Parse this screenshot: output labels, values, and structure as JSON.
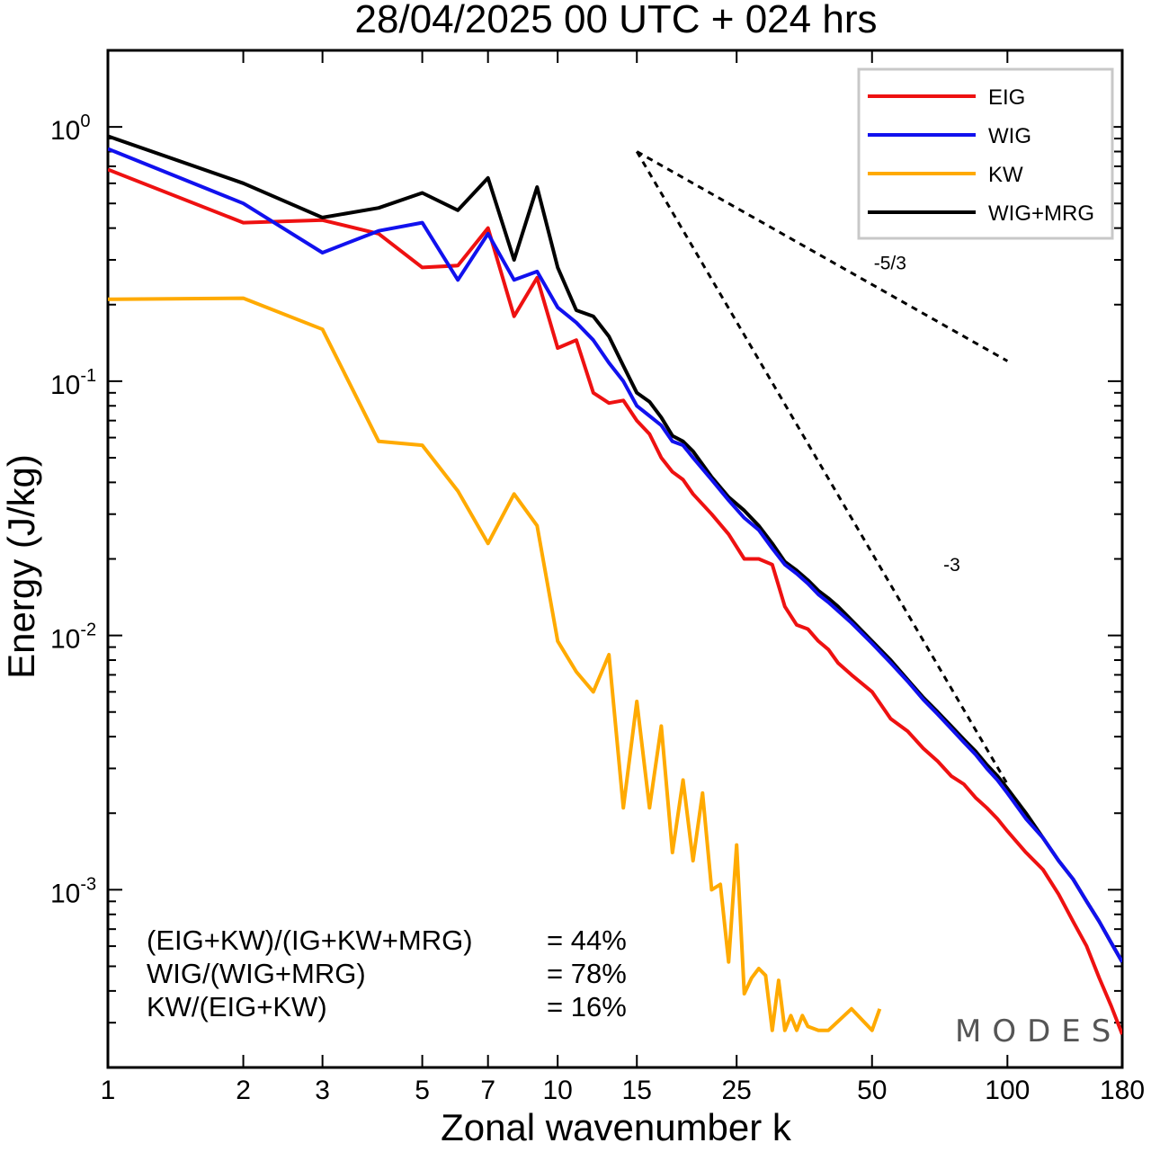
{
  "chart_data": {
    "type": "line",
    "title": "28/04/2025  00 UTC  + 024 hrs",
    "xlabel": "Zonal wavenumber k",
    "ylabel": "Energy (J/kg)",
    "xscale": "log",
    "yscale": "log",
    "xlim": [
      1,
      180
    ],
    "ylim": [
      0.0002,
      2.0
    ],
    "x_ticks": [
      1,
      2,
      3,
      5,
      7,
      10,
      15,
      25,
      50,
      100,
      180
    ],
    "y_tick_labels": [
      {
        "value": 1,
        "base": "10",
        "exp": "0"
      },
      {
        "value": 0.1,
        "base": "10",
        "exp": "-1"
      },
      {
        "value": 0.01,
        "base": "10",
        "exp": "-2"
      },
      {
        "value": 0.001,
        "base": "10",
        "exp": "-3"
      }
    ],
    "legend_position": "top-right",
    "series": [
      {
        "name": "EIG",
        "color": "#ee1111",
        "points": [
          [
            1,
            0.68
          ],
          [
            2,
            0.42
          ],
          [
            3,
            0.43
          ],
          [
            4,
            0.38
          ],
          [
            5,
            0.28
          ],
          [
            6,
            0.285
          ],
          [
            7,
            0.4
          ],
          [
            8,
            0.18
          ],
          [
            9,
            0.255
          ],
          [
            10,
            0.135
          ],
          [
            11,
            0.145
          ],
          [
            12,
            0.09
          ],
          [
            13,
            0.082
          ],
          [
            14,
            0.084
          ],
          [
            15,
            0.07
          ],
          [
            16,
            0.062
          ],
          [
            17,
            0.05
          ],
          [
            18,
            0.044
          ],
          [
            19,
            0.041
          ],
          [
            20,
            0.036
          ],
          [
            22,
            0.03
          ],
          [
            24,
            0.025
          ],
          [
            26,
            0.02
          ],
          [
            28,
            0.02
          ],
          [
            30,
            0.019
          ],
          [
            32,
            0.013
          ],
          [
            34,
            0.011
          ],
          [
            36,
            0.0106
          ],
          [
            38,
            0.0095
          ],
          [
            40,
            0.0088
          ],
          [
            42,
            0.0078
          ],
          [
            45,
            0.007
          ],
          [
            50,
            0.006
          ],
          [
            55,
            0.0047
          ],
          [
            60,
            0.0042
          ],
          [
            65,
            0.0036
          ],
          [
            70,
            0.0032
          ],
          [
            75,
            0.0028
          ],
          [
            80,
            0.0026
          ],
          [
            85,
            0.0023
          ],
          [
            90,
            0.0021
          ],
          [
            95,
            0.0019
          ],
          [
            100,
            0.0017
          ],
          [
            110,
            0.0014
          ],
          [
            120,
            0.0012
          ],
          [
            130,
            0.00096
          ],
          [
            140,
            0.00075
          ],
          [
            150,
            0.0006
          ],
          [
            160,
            0.00045
          ],
          [
            170,
            0.00035
          ],
          [
            180,
            0.00027
          ]
        ]
      },
      {
        "name": "WIG",
        "color": "#1111ee",
        "points": [
          [
            1,
            0.82
          ],
          [
            2,
            0.5
          ],
          [
            3,
            0.32
          ],
          [
            4,
            0.39
          ],
          [
            5,
            0.42
          ],
          [
            6,
            0.25
          ],
          [
            7,
            0.38
          ],
          [
            8,
            0.25
          ],
          [
            9,
            0.27
          ],
          [
            10,
            0.195
          ],
          [
            11,
            0.17
          ],
          [
            12,
            0.145
          ],
          [
            13,
            0.118
          ],
          [
            14,
            0.1
          ],
          [
            15,
            0.08
          ],
          [
            16,
            0.073
          ],
          [
            17,
            0.067
          ],
          [
            18,
            0.058
          ],
          [
            19,
            0.056
          ],
          [
            20,
            0.05
          ],
          [
            22,
            0.041
          ],
          [
            24,
            0.034
          ],
          [
            26,
            0.029
          ],
          [
            28,
            0.026
          ],
          [
            30,
            0.022
          ],
          [
            32,
            0.019
          ],
          [
            34,
            0.0175
          ],
          [
            36,
            0.016
          ],
          [
            38,
            0.0145
          ],
          [
            40,
            0.0135
          ],
          [
            42,
            0.0125
          ],
          [
            45,
            0.0112
          ],
          [
            50,
            0.0093
          ],
          [
            55,
            0.0078
          ],
          [
            60,
            0.0066
          ],
          [
            65,
            0.0056
          ],
          [
            70,
            0.0049
          ],
          [
            75,
            0.0043
          ],
          [
            80,
            0.0038
          ],
          [
            85,
            0.0034
          ],
          [
            90,
            0.003
          ],
          [
            95,
            0.0027
          ],
          [
            100,
            0.0024
          ],
          [
            110,
            0.0019
          ],
          [
            120,
            0.0016
          ],
          [
            130,
            0.0013
          ],
          [
            140,
            0.0011
          ],
          [
            150,
            0.0009
          ],
          [
            160,
            0.00075
          ],
          [
            170,
            0.00062
          ],
          [
            180,
            0.00052
          ]
        ]
      },
      {
        "name": "KW",
        "color": "#ffaa00",
        "points": [
          [
            1,
            0.21
          ],
          [
            2,
            0.212
          ],
          [
            3,
            0.16
          ],
          [
            4,
            0.058
          ],
          [
            5,
            0.056
          ],
          [
            6,
            0.037
          ],
          [
            7,
            0.023
          ],
          [
            8,
            0.036
          ],
          [
            9,
            0.027
          ],
          [
            10,
            0.0095
          ],
          [
            11,
            0.0072
          ],
          [
            12,
            0.006
          ],
          [
            13,
            0.0084
          ],
          [
            14,
            0.0021
          ],
          [
            15,
            0.0055
          ],
          [
            16,
            0.0021
          ],
          [
            17,
            0.0044
          ],
          [
            18,
            0.0014
          ],
          [
            19,
            0.0027
          ],
          [
            20,
            0.0013
          ],
          [
            21,
            0.0024
          ],
          [
            22,
            0.001
          ],
          [
            23,
            0.00105
          ],
          [
            24,
            0.00052
          ],
          [
            25,
            0.0015
          ],
          [
            26,
            0.00039
          ],
          [
            27,
            0.00045
          ],
          [
            28,
            0.00049
          ],
          [
            29,
            0.00046
          ],
          [
            30,
            0.00028
          ],
          [
            31,
            0.00044
          ],
          [
            32,
            0.00028
          ],
          [
            33,
            0.00032
          ],
          [
            34,
            0.00028
          ],
          [
            35,
            0.00032
          ],
          [
            36,
            0.00029
          ],
          [
            38,
            0.00028
          ],
          [
            40,
            0.00028
          ],
          [
            45,
            0.00034
          ],
          [
            50,
            0.00028
          ],
          [
            52,
            0.00034
          ]
        ]
      },
      {
        "name": "WIG+MRG",
        "color": "#000000",
        "points": [
          [
            1,
            0.92
          ],
          [
            2,
            0.6
          ],
          [
            3,
            0.44
          ],
          [
            4,
            0.48
          ],
          [
            5,
            0.55
          ],
          [
            6,
            0.47
          ],
          [
            7,
            0.63
          ],
          [
            8,
            0.3
          ],
          [
            9,
            0.58
          ],
          [
            10,
            0.28
          ],
          [
            11,
            0.19
          ],
          [
            12,
            0.18
          ],
          [
            13,
            0.15
          ],
          [
            14,
            0.115
          ],
          [
            15,
            0.09
          ],
          [
            16,
            0.083
          ],
          [
            17,
            0.072
          ],
          [
            18,
            0.061
          ],
          [
            19,
            0.058
          ],
          [
            20,
            0.053
          ],
          [
            22,
            0.042
          ],
          [
            24,
            0.035
          ],
          [
            26,
            0.031
          ],
          [
            28,
            0.027
          ],
          [
            30,
            0.023
          ],
          [
            32,
            0.0195
          ],
          [
            34,
            0.018
          ],
          [
            36,
            0.0165
          ],
          [
            38,
            0.015
          ],
          [
            40,
            0.014
          ],
          [
            42,
            0.013
          ],
          [
            45,
            0.0115
          ],
          [
            50,
            0.0095
          ],
          [
            55,
            0.008
          ],
          [
            60,
            0.0067
          ],
          [
            65,
            0.0057
          ],
          [
            70,
            0.005
          ],
          [
            75,
            0.0044
          ],
          [
            80,
            0.0039
          ],
          [
            85,
            0.0035
          ],
          [
            90,
            0.0031
          ],
          [
            95,
            0.0028
          ],
          [
            100,
            0.0025
          ],
          [
            110,
            0.002
          ],
          [
            120,
            0.0016
          ],
          [
            130,
            0.0013
          ],
          [
            140,
            0.0011
          ],
          [
            150,
            0.0009
          ],
          [
            160,
            0.00075
          ],
          [
            170,
            0.00062
          ],
          [
            180,
            0.00052
          ]
        ]
      }
    ],
    "reference_lines": [
      {
        "label": "-5/3",
        "x": [
          15,
          100
        ],
        "y": [
          0.8,
          0.12
        ]
      },
      {
        "label": "-3",
        "x": [
          15,
          100
        ],
        "y": [
          0.8,
          0.0026
        ]
      }
    ],
    "stats": [
      {
        "label": "(EIG+KW)/(IG+KW+MRG)",
        "value": "= 44%"
      },
      {
        "label": "WIG/(WIG+MRG)",
        "value": "= 78%"
      },
      {
        "label": "KW/(EIG+KW)",
        "value": "= 16%"
      }
    ],
    "watermark": "MODES"
  }
}
